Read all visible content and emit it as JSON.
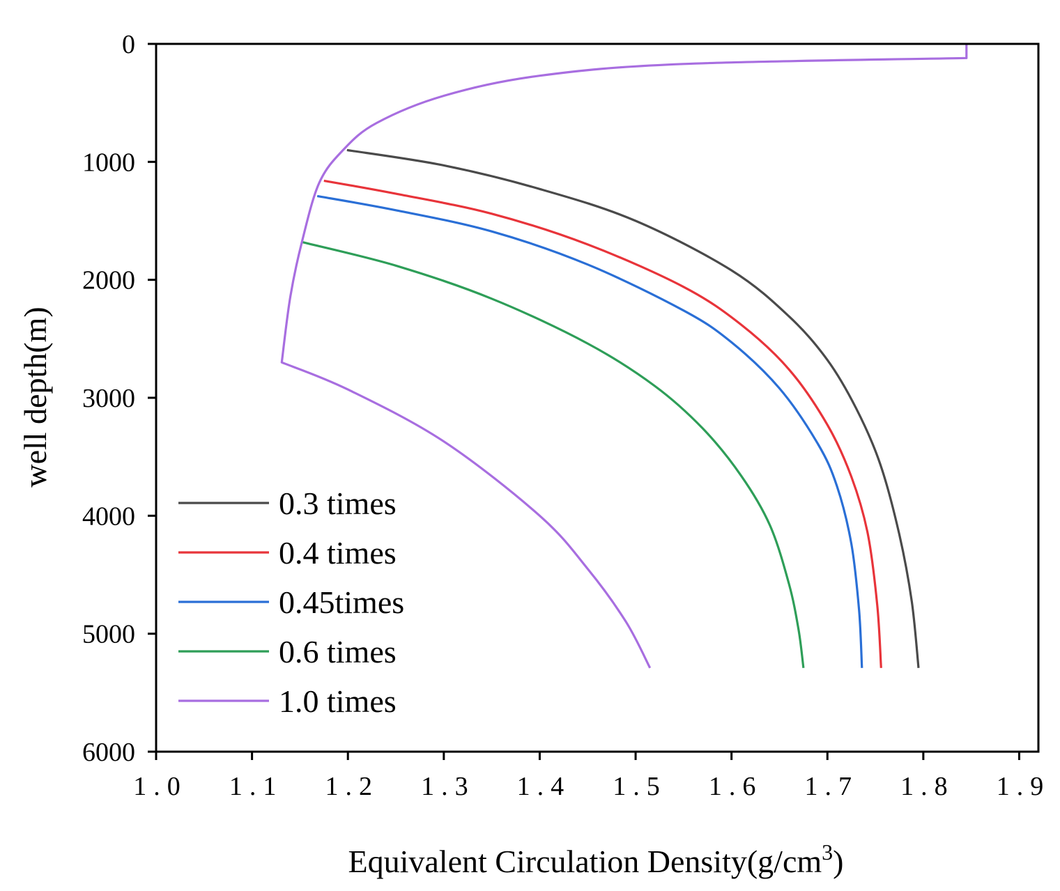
{
  "chart_data": {
    "type": "line",
    "xlabel": "Equivalent Circulation Density(g/cm",
    "xlabel_superscript": "3",
    "xlabel_suffix": ")",
    "ylabel": "well depth(m)",
    "xlim": [
      1.0,
      1.92
    ],
    "ylim": [
      0,
      6000
    ],
    "y_inverted": true,
    "x_ticks": [
      1.0,
      1.1,
      1.2,
      1.3,
      1.4,
      1.5,
      1.6,
      1.7,
      1.8,
      1.9
    ],
    "x_tick_labels": [
      "1.0",
      "1.1",
      "1.2",
      "1.3",
      "1.4",
      "1.5",
      "1.6",
      "1.7",
      "1.8",
      "1.9"
    ],
    "y_ticks": [
      0,
      1000,
      2000,
      3000,
      4000,
      5000,
      6000
    ],
    "y_tick_labels": [
      "0",
      "1000",
      "2000",
      "3000",
      "4000",
      "5000",
      "6000"
    ],
    "grid": false,
    "legend_position": "bottom-left",
    "series": [
      {
        "name": "0.3 times",
        "color": "#4a4a4a",
        "points": [
          [
            1.199,
            900
          ],
          [
            1.3,
            1030
          ],
          [
            1.4,
            1230
          ],
          [
            1.5,
            1500
          ],
          [
            1.6,
            1920
          ],
          [
            1.66,
            2310
          ],
          [
            1.7,
            2680
          ],
          [
            1.73,
            3090
          ],
          [
            1.755,
            3560
          ],
          [
            1.775,
            4160
          ],
          [
            1.788,
            4730
          ],
          [
            1.795,
            5290
          ]
        ]
      },
      {
        "name": "0.4 times",
        "color": "#e8343a",
        "points": [
          [
            1.175,
            1160
          ],
          [
            1.25,
            1270
          ],
          [
            1.35,
            1440
          ],
          [
            1.45,
            1700
          ],
          [
            1.55,
            2060
          ],
          [
            1.61,
            2380
          ],
          [
            1.66,
            2760
          ],
          [
            1.7,
            3230
          ],
          [
            1.725,
            3670
          ],
          [
            1.742,
            4150
          ],
          [
            1.752,
            4760
          ],
          [
            1.756,
            5290
          ]
        ]
      },
      {
        "name": "0.45times",
        "color": "#2a6fd6",
        "points": [
          [
            1.168,
            1290
          ],
          [
            1.25,
            1410
          ],
          [
            1.35,
            1590
          ],
          [
            1.45,
            1870
          ],
          [
            1.55,
            2260
          ],
          [
            1.6,
            2530
          ],
          [
            1.65,
            2920
          ],
          [
            1.69,
            3390
          ],
          [
            1.71,
            3750
          ],
          [
            1.725,
            4240
          ],
          [
            1.733,
            4800
          ],
          [
            1.736,
            5290
          ]
        ]
      },
      {
        "name": "0.6 times",
        "color": "#2e9e58",
        "points": [
          [
            1.152,
            1680
          ],
          [
            1.25,
            1880
          ],
          [
            1.35,
            2160
          ],
          [
            1.45,
            2540
          ],
          [
            1.52,
            2900
          ],
          [
            1.57,
            3260
          ],
          [
            1.61,
            3660
          ],
          [
            1.64,
            4080
          ],
          [
            1.66,
            4580
          ],
          [
            1.67,
            4970
          ],
          [
            1.675,
            5290
          ]
        ]
      },
      {
        "name": "1.0 times",
        "color": "#a86ee0",
        "points": [
          [
            1.845,
            0
          ],
          [
            1.845,
            120
          ],
          [
            1.55,
            170
          ],
          [
            1.4,
            270
          ],
          [
            1.3,
            440
          ],
          [
            1.23,
            670
          ],
          [
            1.195,
            900
          ],
          [
            1.17,
            1180
          ],
          [
            1.152,
            1680
          ],
          [
            1.14,
            2140
          ],
          [
            1.131,
            2700
          ],
          [
            1.2,
            2930
          ],
          [
            1.3,
            3370
          ],
          [
            1.4,
            4000
          ],
          [
            1.45,
            4450
          ],
          [
            1.49,
            4900
          ],
          [
            1.515,
            5290
          ]
        ]
      }
    ]
  }
}
